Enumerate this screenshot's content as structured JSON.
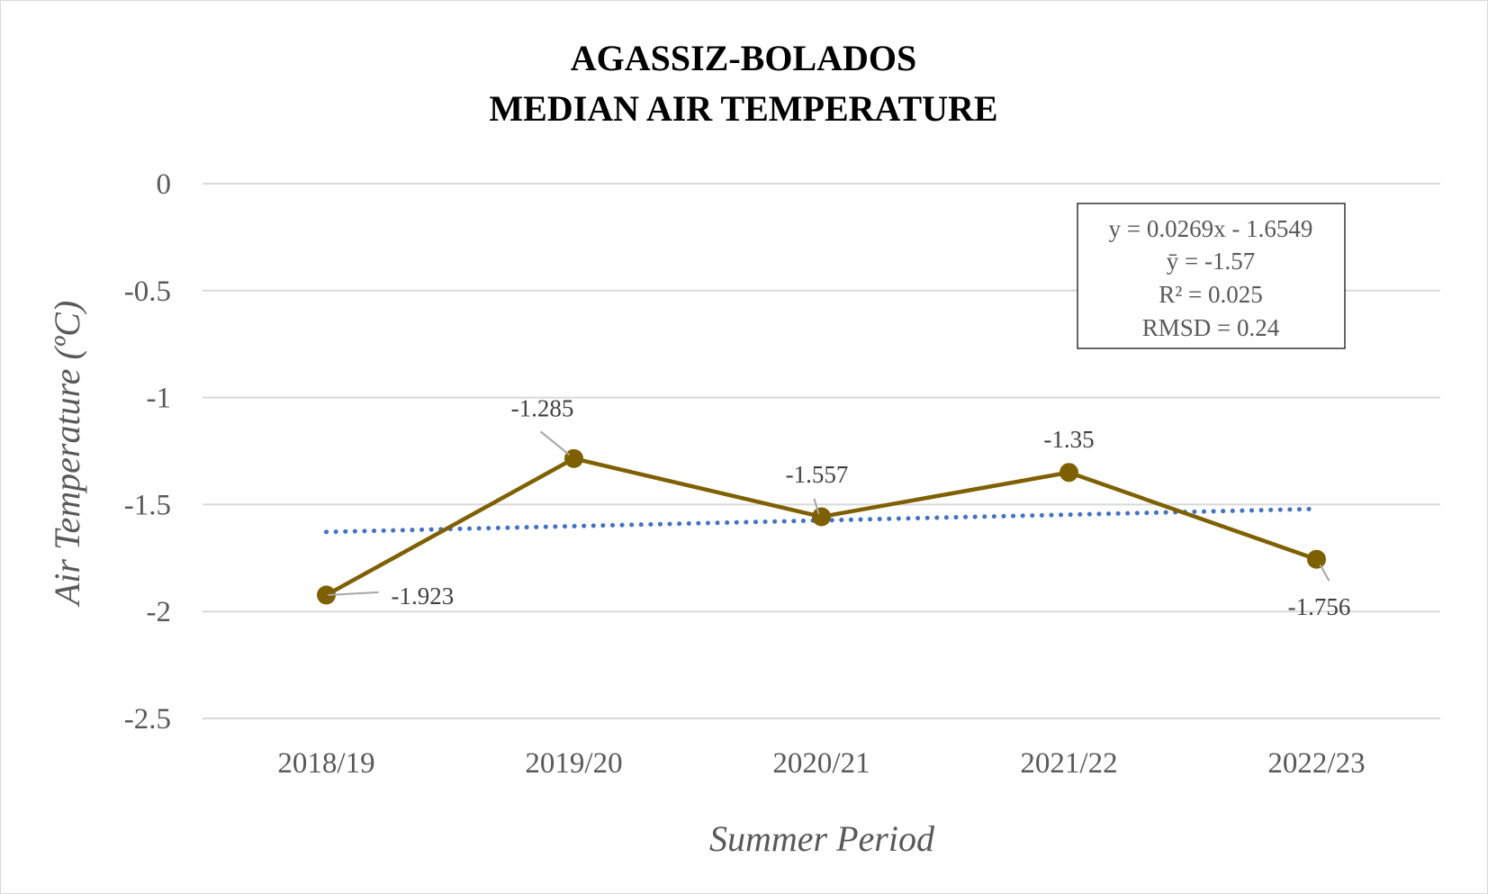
{
  "chart_data": {
    "type": "line",
    "title": [
      "AGASSIZ-BOLADOS",
      "MEDIAN AIR TEMPERATURE"
    ],
    "xlabel": "Summer Period",
    "ylabel": "Air Temperature (ºC)",
    "categories": [
      "2018/19",
      "2019/20",
      "2020/21",
      "2021/22",
      "2022/23"
    ],
    "series": [
      {
        "values": [
          -1.923,
          -1.285,
          -1.557,
          -1.35,
          -1.756
        ],
        "labels": [
          "-1.923",
          "-1.285",
          "-1.557",
          "-1.35",
          "-1.756"
        ],
        "color": "#7f6000"
      }
    ],
    "trendline": {
      "slope": 0.0269,
      "intercept": -1.6549,
      "style": "dotted",
      "color": "#4472c4"
    },
    "ylim": [
      -2.5,
      0
    ],
    "yticks": [
      0,
      -0.5,
      -1,
      -1.5,
      -2,
      -2.5
    ],
    "ytick_labels": [
      "0",
      "-0.5",
      "-1",
      "-1.5",
      "-2",
      "-2.5"
    ],
    "grid": true,
    "legend": "none",
    "stats_box": {
      "position": "top-right",
      "lines": [
        "y = 0.0269x - 1.6549",
        "ȳ = -1.57",
        "R² = 0.025",
        "RMSD = 0.24"
      ]
    },
    "gridline_color": "#d9d9d9"
  }
}
